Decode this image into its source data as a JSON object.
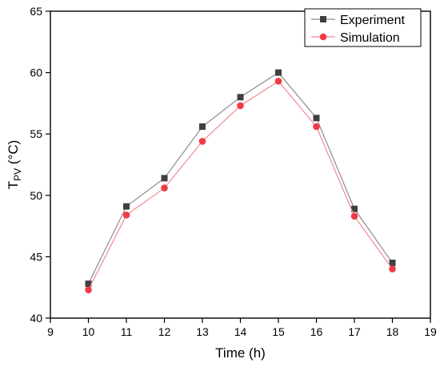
{
  "chart_data": {
    "type": "line",
    "title": "",
    "xlabel": "Time (h)",
    "ylabel_main": "T",
    "ylabel_sub": "PV",
    "ylabel_unit": " (°C)",
    "xlim": [
      9,
      19
    ],
    "ylim": [
      40,
      65
    ],
    "xticks": [
      9,
      10,
      11,
      12,
      13,
      14,
      15,
      16,
      17,
      18,
      19
    ],
    "yticks": [
      40,
      45,
      50,
      55,
      60,
      65
    ],
    "grid": false,
    "legend_position": "top-right",
    "x": [
      10,
      11,
      12,
      13,
      14,
      15,
      16,
      17,
      18
    ],
    "series": [
      {
        "name": "Experiment",
        "marker": "square",
        "color": "#404040",
        "line_color": "#8c8c8c",
        "values": [
          42.8,
          49.1,
          51.4,
          55.6,
          58.0,
          60.0,
          56.3,
          48.9,
          44.5
        ]
      },
      {
        "name": "Simulation",
        "marker": "circle",
        "color": "#ef3b47",
        "line_color": "#f08a92",
        "values": [
          42.3,
          48.4,
          50.6,
          54.4,
          57.3,
          59.3,
          55.6,
          48.3,
          44.0
        ]
      }
    ]
  }
}
